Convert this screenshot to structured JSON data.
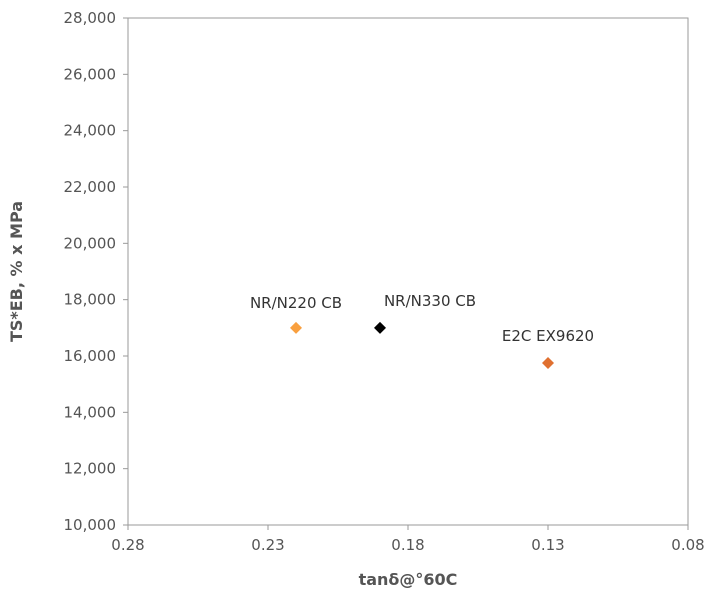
{
  "chart_data": {
    "type": "scatter",
    "title": "",
    "xlabel": "tanδ@°60C",
    "ylabel": "TS*EB, % x MPa",
    "xlim": [
      0.28,
      0.08
    ],
    "ylim": [
      10000,
      28000
    ],
    "x_reversed": true,
    "grid": false,
    "legend": "none",
    "xticks": [
      "0.28",
      "0.23",
      "0.18",
      "0.13",
      "0.08"
    ],
    "xtick_values": [
      0.28,
      0.23,
      0.18,
      0.13,
      0.08
    ],
    "yticks": [
      "28,000",
      "26,000",
      "24,000",
      "22,000",
      "20,000",
      "18,000",
      "16,000",
      "14,000",
      "12,000",
      "10,000"
    ],
    "ytick_values": [
      28000,
      26000,
      24000,
      22000,
      20000,
      18000,
      16000,
      14000,
      12000,
      10000
    ],
    "points": [
      {
        "label": "NR/N220 CB",
        "x": 0.22,
        "y": 17000,
        "color": "#F9A03F"
      },
      {
        "label": "NR/N330 CB",
        "x": 0.19,
        "y": 17000,
        "color": "#000000"
      },
      {
        "label": "E2C EX9620",
        "x": 0.13,
        "y": 15750,
        "color": "#E07030"
      }
    ]
  }
}
